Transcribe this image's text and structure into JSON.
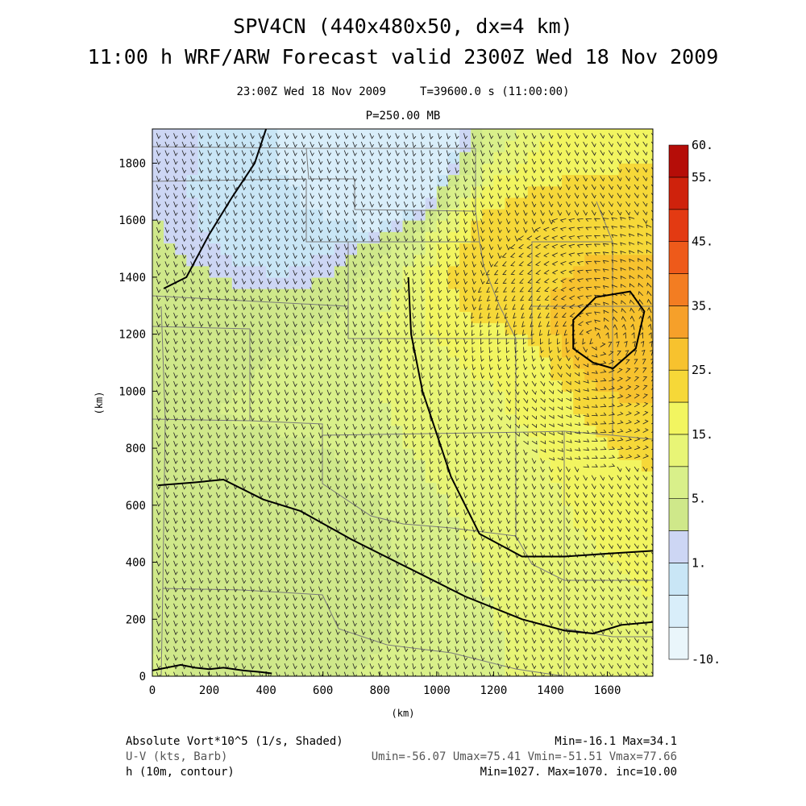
{
  "header": {
    "title_line1": "SPV4CN (440x480x50, dx=4 km)",
    "title_line2": "11:00 h WRF/ARW Forecast valid 2300Z Wed 18 Nov 2009",
    "subtitle_line1": "23:00Z Wed 18 Nov 2009     T=39600.0 s (11:00:00)",
    "subtitle_line2": "P=250.00 MB"
  },
  "chart_data": {
    "type": "heatmap",
    "xlabel": "(km)",
    "ylabel": "(km)",
    "xlim": [
      0,
      1760
    ],
    "ylim": [
      0,
      1920
    ],
    "x_ticks": [
      0,
      200,
      400,
      600,
      800,
      1000,
      1200,
      1400,
      1600
    ],
    "y_ticks": [
      0,
      200,
      400,
      600,
      800,
      1000,
      1200,
      1400,
      1600,
      1800
    ],
    "fields": {
      "shaded": "Absolute Vort*10^5 (1/s, Shaded)",
      "barbs": "U-V (kts, Barb)",
      "contour": "h (10m, contour)"
    },
    "colorbar": {
      "levels": [
        -10,
        -5,
        0,
        1,
        2,
        5,
        10,
        15,
        20,
        25,
        30,
        35,
        40,
        45,
        50,
        55,
        60
      ],
      "labels": [
        {
          "value": 60,
          "text": "60."
        },
        {
          "value": 55,
          "text": "55."
        },
        {
          "value": 45,
          "text": "45."
        },
        {
          "value": 35,
          "text": "35."
        },
        {
          "value": 25,
          "text": "25."
        },
        {
          "value": 15,
          "text": "15."
        },
        {
          "value": 5,
          "text": "5."
        },
        {
          "value": 1,
          "text": "1."
        },
        {
          "value": -10,
          "text": "-10."
        }
      ],
      "colors": [
        "#eaf6fb",
        "#d9eefa",
        "#c9e6f6",
        "#cdd6f4",
        "#cfe88a",
        "#d9f08a",
        "#e8f576",
        "#f2f560",
        "#f6d838",
        "#f7c22e",
        "#f6a02a",
        "#f37d22",
        "#ee5a1a",
        "#e33a12",
        "#cf220c",
        "#b50d08"
      ]
    },
    "height_contours_m": [
      {
        "value": 1030,
        "x": [
          20,
          150,
          250,
          390,
          520,
          700,
          900,
          1100,
          1300,
          1450,
          1550,
          1650,
          1760
        ],
        "y": [
          670,
          680,
          690,
          620,
          580,
          480,
          380,
          280,
          200,
          160,
          150,
          180,
          190
        ]
      },
      {
        "value": 1040,
        "x": [
          0,
          100,
          150,
          200,
          250,
          320,
          380,
          420
        ],
        "y": [
          20,
          40,
          30,
          25,
          30,
          20,
          15,
          10
        ]
      },
      {
        "value": 1050,
        "x": [
          40,
          120,
          200,
          280,
          360,
          400
        ],
        "y": [
          1360,
          1400,
          1550,
          1680,
          1800,
          1920
        ]
      },
      {
        "value": 1060,
        "x": [
          900,
          910,
          950,
          1050,
          1150,
          1300,
          1450,
          1600,
          1760
        ],
        "y": [
          1400,
          1200,
          1000,
          700,
          500,
          420,
          420,
          430,
          440
        ]
      },
      {
        "value": 1070,
        "x": [
          1550,
          1620,
          1700,
          1730,
          1680,
          1560,
          1480,
          1480,
          1550
        ],
        "y": [
          1100,
          1080,
          1150,
          1280,
          1350,
          1330,
          1250,
          1150,
          1100
        ]
      }
    ],
    "vort_regions": [
      {
        "value": 30,
        "x": 1560,
        "y": 1180
      },
      {
        "value": 25,
        "x": 1250,
        "y": 1450
      },
      {
        "value": 15,
        "x": 1300,
        "y": 1000
      },
      {
        "value": 10,
        "x": 1050,
        "y": 800
      },
      {
        "value": 2,
        "x": 600,
        "y": 500
      },
      {
        "value": 5,
        "x": 300,
        "y": 1000
      },
      {
        "value": 0,
        "x": 450,
        "y": 1600
      },
      {
        "value": -5,
        "x": 850,
        "y": 1800
      }
    ]
  },
  "footer": {
    "line1_left": "Absolute Vort*10^5 (1/s, Shaded)",
    "line1_right": "Min=-16.1 Max=34.1",
    "line2_left": "U-V (kts, Barb)",
    "line2_right": "Umin=-56.07 Umax=75.41 Vmin=-51.51 Vmax=77.66",
    "line3_left": "h (10m, contour)",
    "line3_right": "Min=1027. Max=1070. inc=10.00"
  }
}
